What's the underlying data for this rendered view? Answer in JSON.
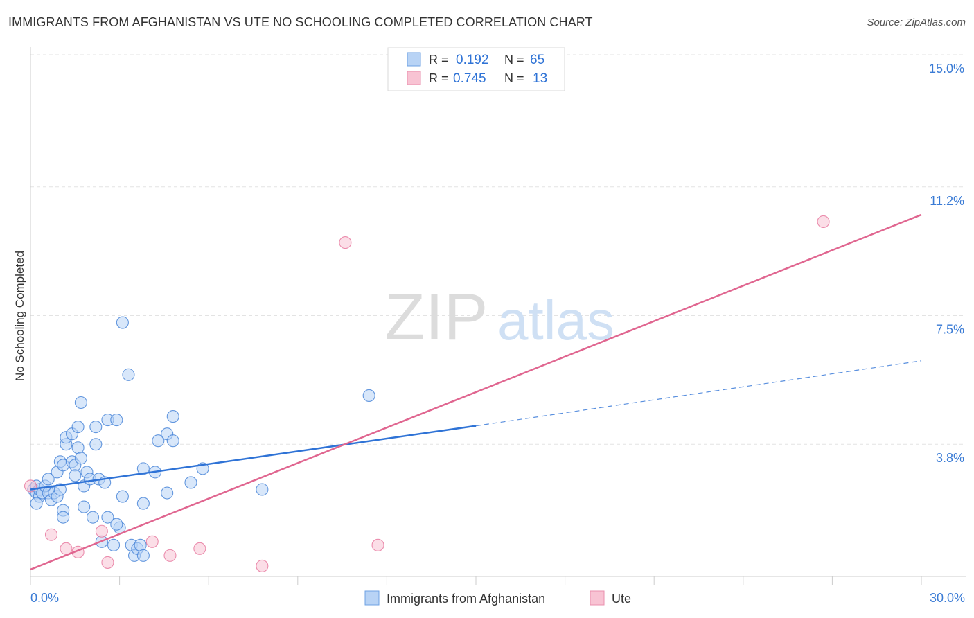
{
  "title": "IMMIGRANTS FROM AFGHANISTAN VS UTE NO SCHOOLING COMPLETED CORRELATION CHART",
  "source": "Source: ZipAtlas.com",
  "watermark": {
    "zip": "ZIP",
    "atlas": "atlas"
  },
  "legend_top": {
    "rows": [
      {
        "r_label": "R = ",
        "r_value": "0.192",
        "n_label": "N = ",
        "n_value": "65",
        "color": "#b8d3f5"
      },
      {
        "r_label": "R = ",
        "r_value": "0.745",
        "n_label": "N = ",
        "n_value": "13",
        "color": "#f8c3d3"
      }
    ]
  },
  "chart_data": {
    "type": "scatter",
    "ylabel": "No Schooling Completed",
    "xlabel": "",
    "xlim": [
      0,
      30
    ],
    "ylim": [
      0,
      15
    ],
    "x_tick_labels": [
      {
        "value": 0,
        "label": "0.0%"
      },
      {
        "value": 30,
        "label": "30.0%"
      }
    ],
    "y_tick_labels": [
      {
        "value": 3.8,
        "label": "3.8%"
      },
      {
        "value": 7.5,
        "label": "7.5%"
      },
      {
        "value": 11.2,
        "label": "11.2%"
      },
      {
        "value": 15.0,
        "label": "15.0%"
      }
    ],
    "y_gridlines": [
      3.8,
      7.5,
      11.2,
      15.0
    ],
    "grid": true,
    "legend_position": "bottom-center",
    "series": [
      {
        "name": "Immigrants from Afghanistan",
        "color": "#4a86d8",
        "fill": "#b8d3f5",
        "trend": {
          "x0": 0,
          "y0": 2.5,
          "x1": 15,
          "y1": 4.33,
          "dashed_to_x": 30,
          "dashed_to_y": 6.2,
          "color": "#2f73d6"
        },
        "points": [
          [
            0.1,
            2.5
          ],
          [
            0.2,
            2.4
          ],
          [
            0.2,
            2.6
          ],
          [
            0.3,
            2.3
          ],
          [
            0.3,
            2.5
          ],
          [
            0.4,
            2.4
          ],
          [
            0.2,
            2.1
          ],
          [
            0.5,
            2.6
          ],
          [
            0.6,
            2.4
          ],
          [
            0.7,
            2.2
          ],
          [
            0.8,
            2.4
          ],
          [
            0.9,
            2.3
          ],
          [
            1.0,
            2.5
          ],
          [
            0.6,
            2.8
          ],
          [
            0.9,
            3.0
          ],
          [
            1.0,
            3.3
          ],
          [
            1.1,
            3.2
          ],
          [
            1.2,
            3.8
          ],
          [
            1.2,
            4.0
          ],
          [
            1.4,
            4.1
          ],
          [
            1.4,
            3.3
          ],
          [
            1.5,
            3.2
          ],
          [
            1.5,
            2.9
          ],
          [
            1.6,
            4.3
          ],
          [
            1.6,
            3.7
          ],
          [
            1.7,
            3.4
          ],
          [
            1.7,
            5.0
          ],
          [
            1.8,
            2.6
          ],
          [
            1.9,
            3.0
          ],
          [
            2.0,
            2.8
          ],
          [
            2.2,
            3.8
          ],
          [
            2.2,
            4.3
          ],
          [
            2.3,
            2.8
          ],
          [
            2.5,
            2.7
          ],
          [
            2.6,
            4.5
          ],
          [
            2.9,
            4.5
          ],
          [
            3.0,
            1.4
          ],
          [
            3.1,
            7.3
          ],
          [
            3.3,
            5.8
          ],
          [
            3.4,
            0.9
          ],
          [
            3.5,
            0.6
          ],
          [
            3.6,
            0.8
          ],
          [
            3.7,
            0.9
          ],
          [
            3.8,
            3.1
          ],
          [
            3.8,
            0.6
          ],
          [
            4.2,
            3.0
          ],
          [
            4.3,
            3.9
          ],
          [
            4.6,
            4.1
          ],
          [
            4.8,
            3.9
          ],
          [
            4.8,
            4.6
          ],
          [
            5.4,
            2.7
          ],
          [
            5.8,
            3.1
          ],
          [
            7.8,
            2.5
          ],
          [
            11.4,
            5.2
          ],
          [
            1.1,
            1.9
          ],
          [
            1.1,
            1.7
          ],
          [
            1.8,
            2.0
          ],
          [
            2.1,
            1.7
          ],
          [
            2.4,
            1.0
          ],
          [
            2.6,
            1.7
          ],
          [
            2.8,
            0.9
          ],
          [
            2.9,
            1.5
          ],
          [
            3.1,
            2.3
          ],
          [
            3.8,
            2.1
          ],
          [
            4.6,
            2.4
          ]
        ]
      },
      {
        "name": "Ute",
        "color": "#e87aa0",
        "fill": "#f8c3d3",
        "trend": {
          "x0": 0,
          "y0": 0.2,
          "x1": 30,
          "y1": 10.4,
          "color": "#e06690"
        },
        "points": [
          [
            0.0,
            2.6
          ],
          [
            0.7,
            1.2
          ],
          [
            1.2,
            0.8
          ],
          [
            1.6,
            0.7
          ],
          [
            2.4,
            1.3
          ],
          [
            2.6,
            0.4
          ],
          [
            4.1,
            1.0
          ],
          [
            4.7,
            0.6
          ],
          [
            5.7,
            0.8
          ],
          [
            7.8,
            0.3
          ],
          [
            10.6,
            9.6
          ],
          [
            11.7,
            0.9
          ],
          [
            26.7,
            10.2
          ]
        ]
      }
    ]
  }
}
